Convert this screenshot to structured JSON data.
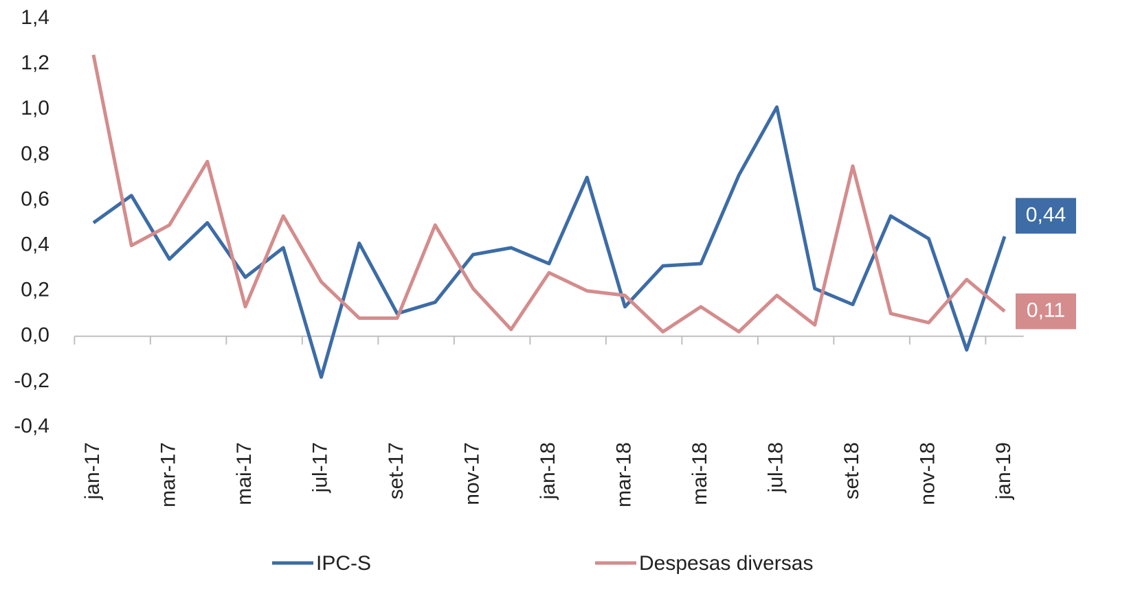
{
  "chart_data": {
    "type": "line",
    "categories": [
      "jan-17",
      null,
      "mar-17",
      null,
      "mai-17",
      null,
      "jul-17",
      null,
      "set-17",
      null,
      "nov-17",
      null,
      "jan-18",
      null,
      "mar-18",
      null,
      "mai-18",
      null,
      "jul-18",
      null,
      "set-18",
      null,
      "nov-18",
      null,
      "jan-19"
    ],
    "series": [
      {
        "name": "IPC-S",
        "color": "#3d6ca6",
        "values": [
          0.5,
          0.62,
          0.34,
          0.5,
          0.26,
          0.39,
          -0.18,
          0.41,
          0.1,
          0.15,
          0.36,
          0.39,
          0.32,
          0.7,
          0.13,
          0.31,
          0.32,
          0.71,
          1.01,
          0.21,
          0.14,
          0.53,
          0.43,
          -0.06,
          0.44
        ],
        "value_labels": [
          null,
          null,
          null,
          null,
          null,
          null,
          null,
          null,
          null,
          null,
          null,
          null,
          null,
          null,
          null,
          null,
          null,
          null,
          null,
          null,
          null,
          null,
          null,
          null,
          "0,44"
        ]
      },
      {
        "name": "Despesas diversas",
        "color": "#d48c8c",
        "values": [
          1.24,
          0.4,
          0.49,
          0.77,
          0.13,
          0.53,
          0.24,
          0.08,
          0.08,
          0.49,
          0.21,
          0.03,
          0.28,
          0.2,
          0.18,
          0.02,
          0.13,
          0.02,
          0.18,
          0.05,
          0.75,
          0.1,
          0.06,
          0.25,
          0.11
        ],
        "value_labels": [
          null,
          null,
          null,
          null,
          null,
          null,
          null,
          null,
          null,
          null,
          null,
          null,
          null,
          null,
          null,
          null,
          null,
          null,
          null,
          null,
          null,
          null,
          null,
          null,
          "0,11"
        ]
      }
    ],
    "ylim": [
      -0.4,
      1.4
    ],
    "yticks": [
      {
        "value": -0.4,
        "label": "-0,4"
      },
      {
        "value": -0.2,
        "label": "-0,2"
      },
      {
        "value": 0,
        "label": "0,0"
      },
      {
        "value": 0.2,
        "label": "0,2"
      },
      {
        "value": 0.4,
        "label": "0,4"
      },
      {
        "value": 0.6,
        "label": "0,6"
      },
      {
        "value": 0.8,
        "label": "0,8"
      },
      {
        "value": 1.0,
        "label": "1,0"
      },
      {
        "value": 1.2,
        "label": "1,2"
      },
      {
        "value": 1.4,
        "label": "1,4"
      }
    ],
    "grid": false,
    "legend": "bottom"
  }
}
